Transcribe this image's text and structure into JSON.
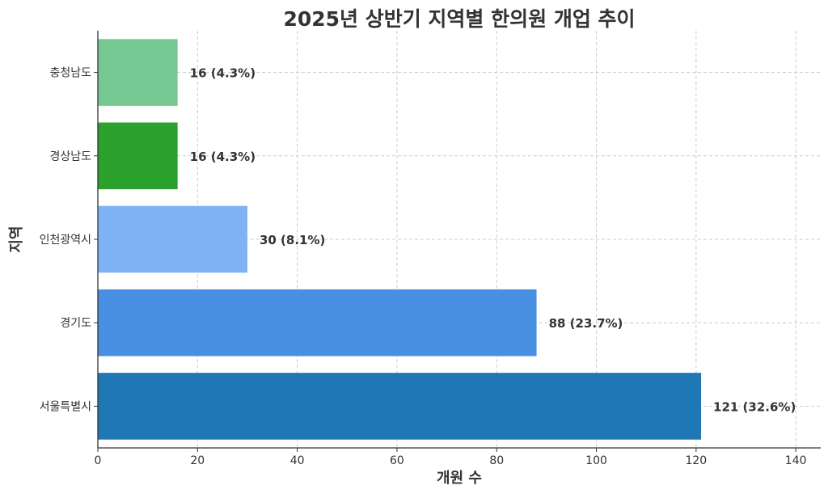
{
  "chart_data": {
    "type": "bar",
    "orientation": "horizontal",
    "title": "2025년 상반기 지역별 한의원 개업 추이",
    "xlabel": "개원 수",
    "ylabel": "지역",
    "xlim": [
      0,
      145
    ],
    "xticks": [
      0,
      20,
      40,
      60,
      80,
      100,
      120,
      140
    ],
    "grid": true,
    "categories": [
      "서울특별시",
      "경기도",
      "인천광역시",
      "경상남도",
      "충청남도"
    ],
    "values": [
      121,
      88,
      30,
      16,
      16
    ],
    "data_labels": [
      "121 (32.6%)",
      "88 (23.7%)",
      "30 (8.1%)",
      "16 (4.3%)",
      "16 (4.3%)"
    ],
    "colors": [
      "#1f77b4",
      "#4a90e2",
      "#7fb3f5",
      "#2ca02c",
      "#77c893"
    ]
  }
}
